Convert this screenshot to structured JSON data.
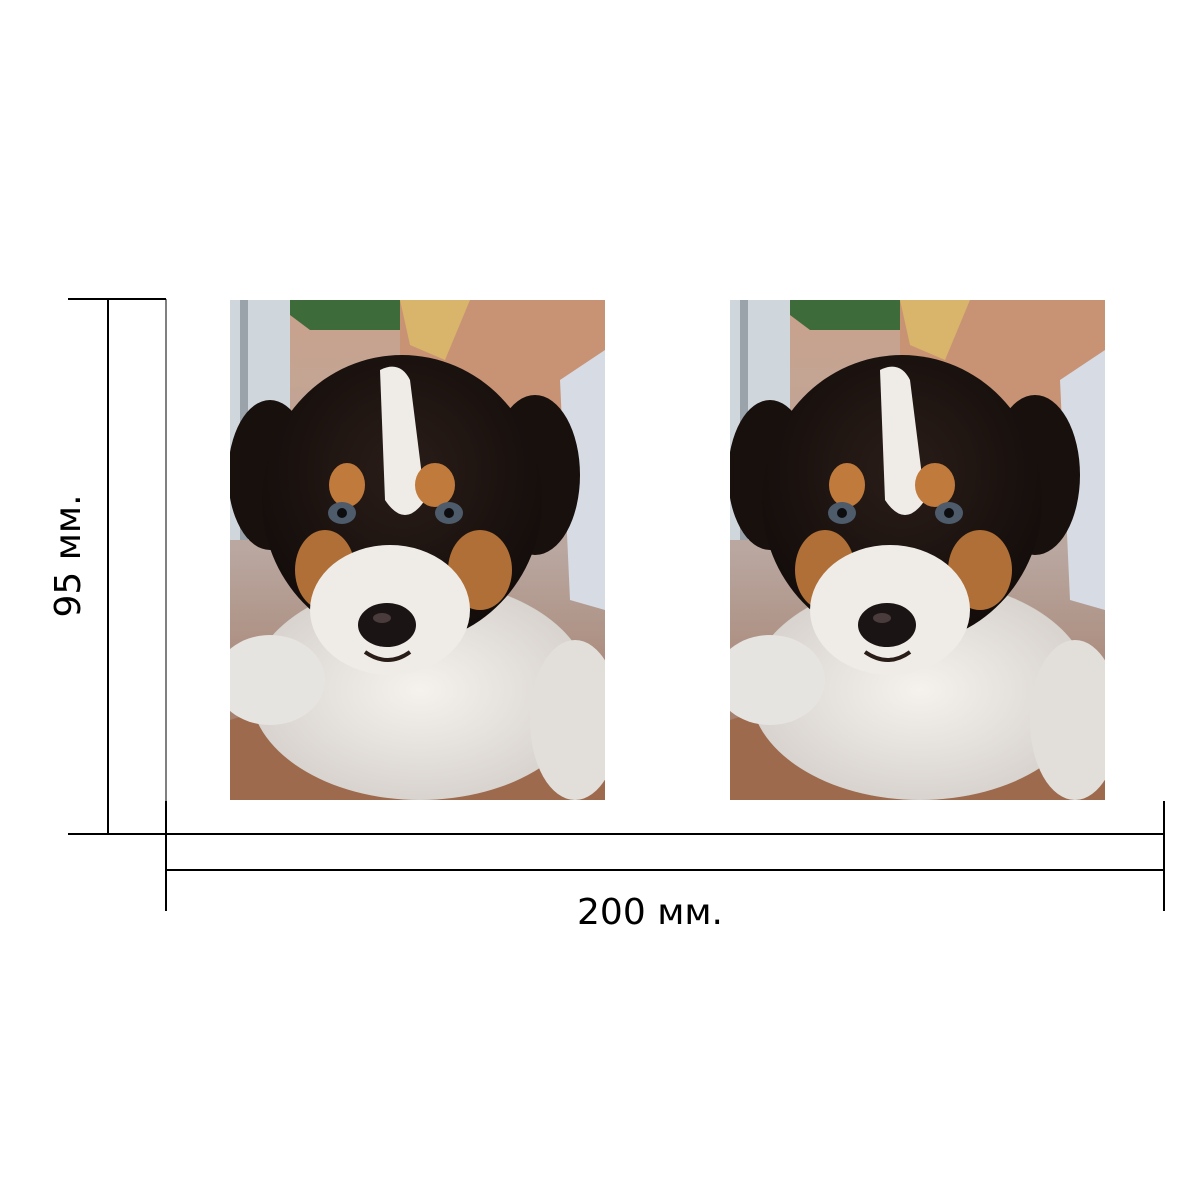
{
  "dimensions": {
    "height_label": "95 мм.",
    "width_label": "200 мм."
  },
  "photos": {
    "count": 2,
    "subject": "puppy-photo"
  },
  "colors": {
    "line": "#000000",
    "background": "#ffffff"
  }
}
